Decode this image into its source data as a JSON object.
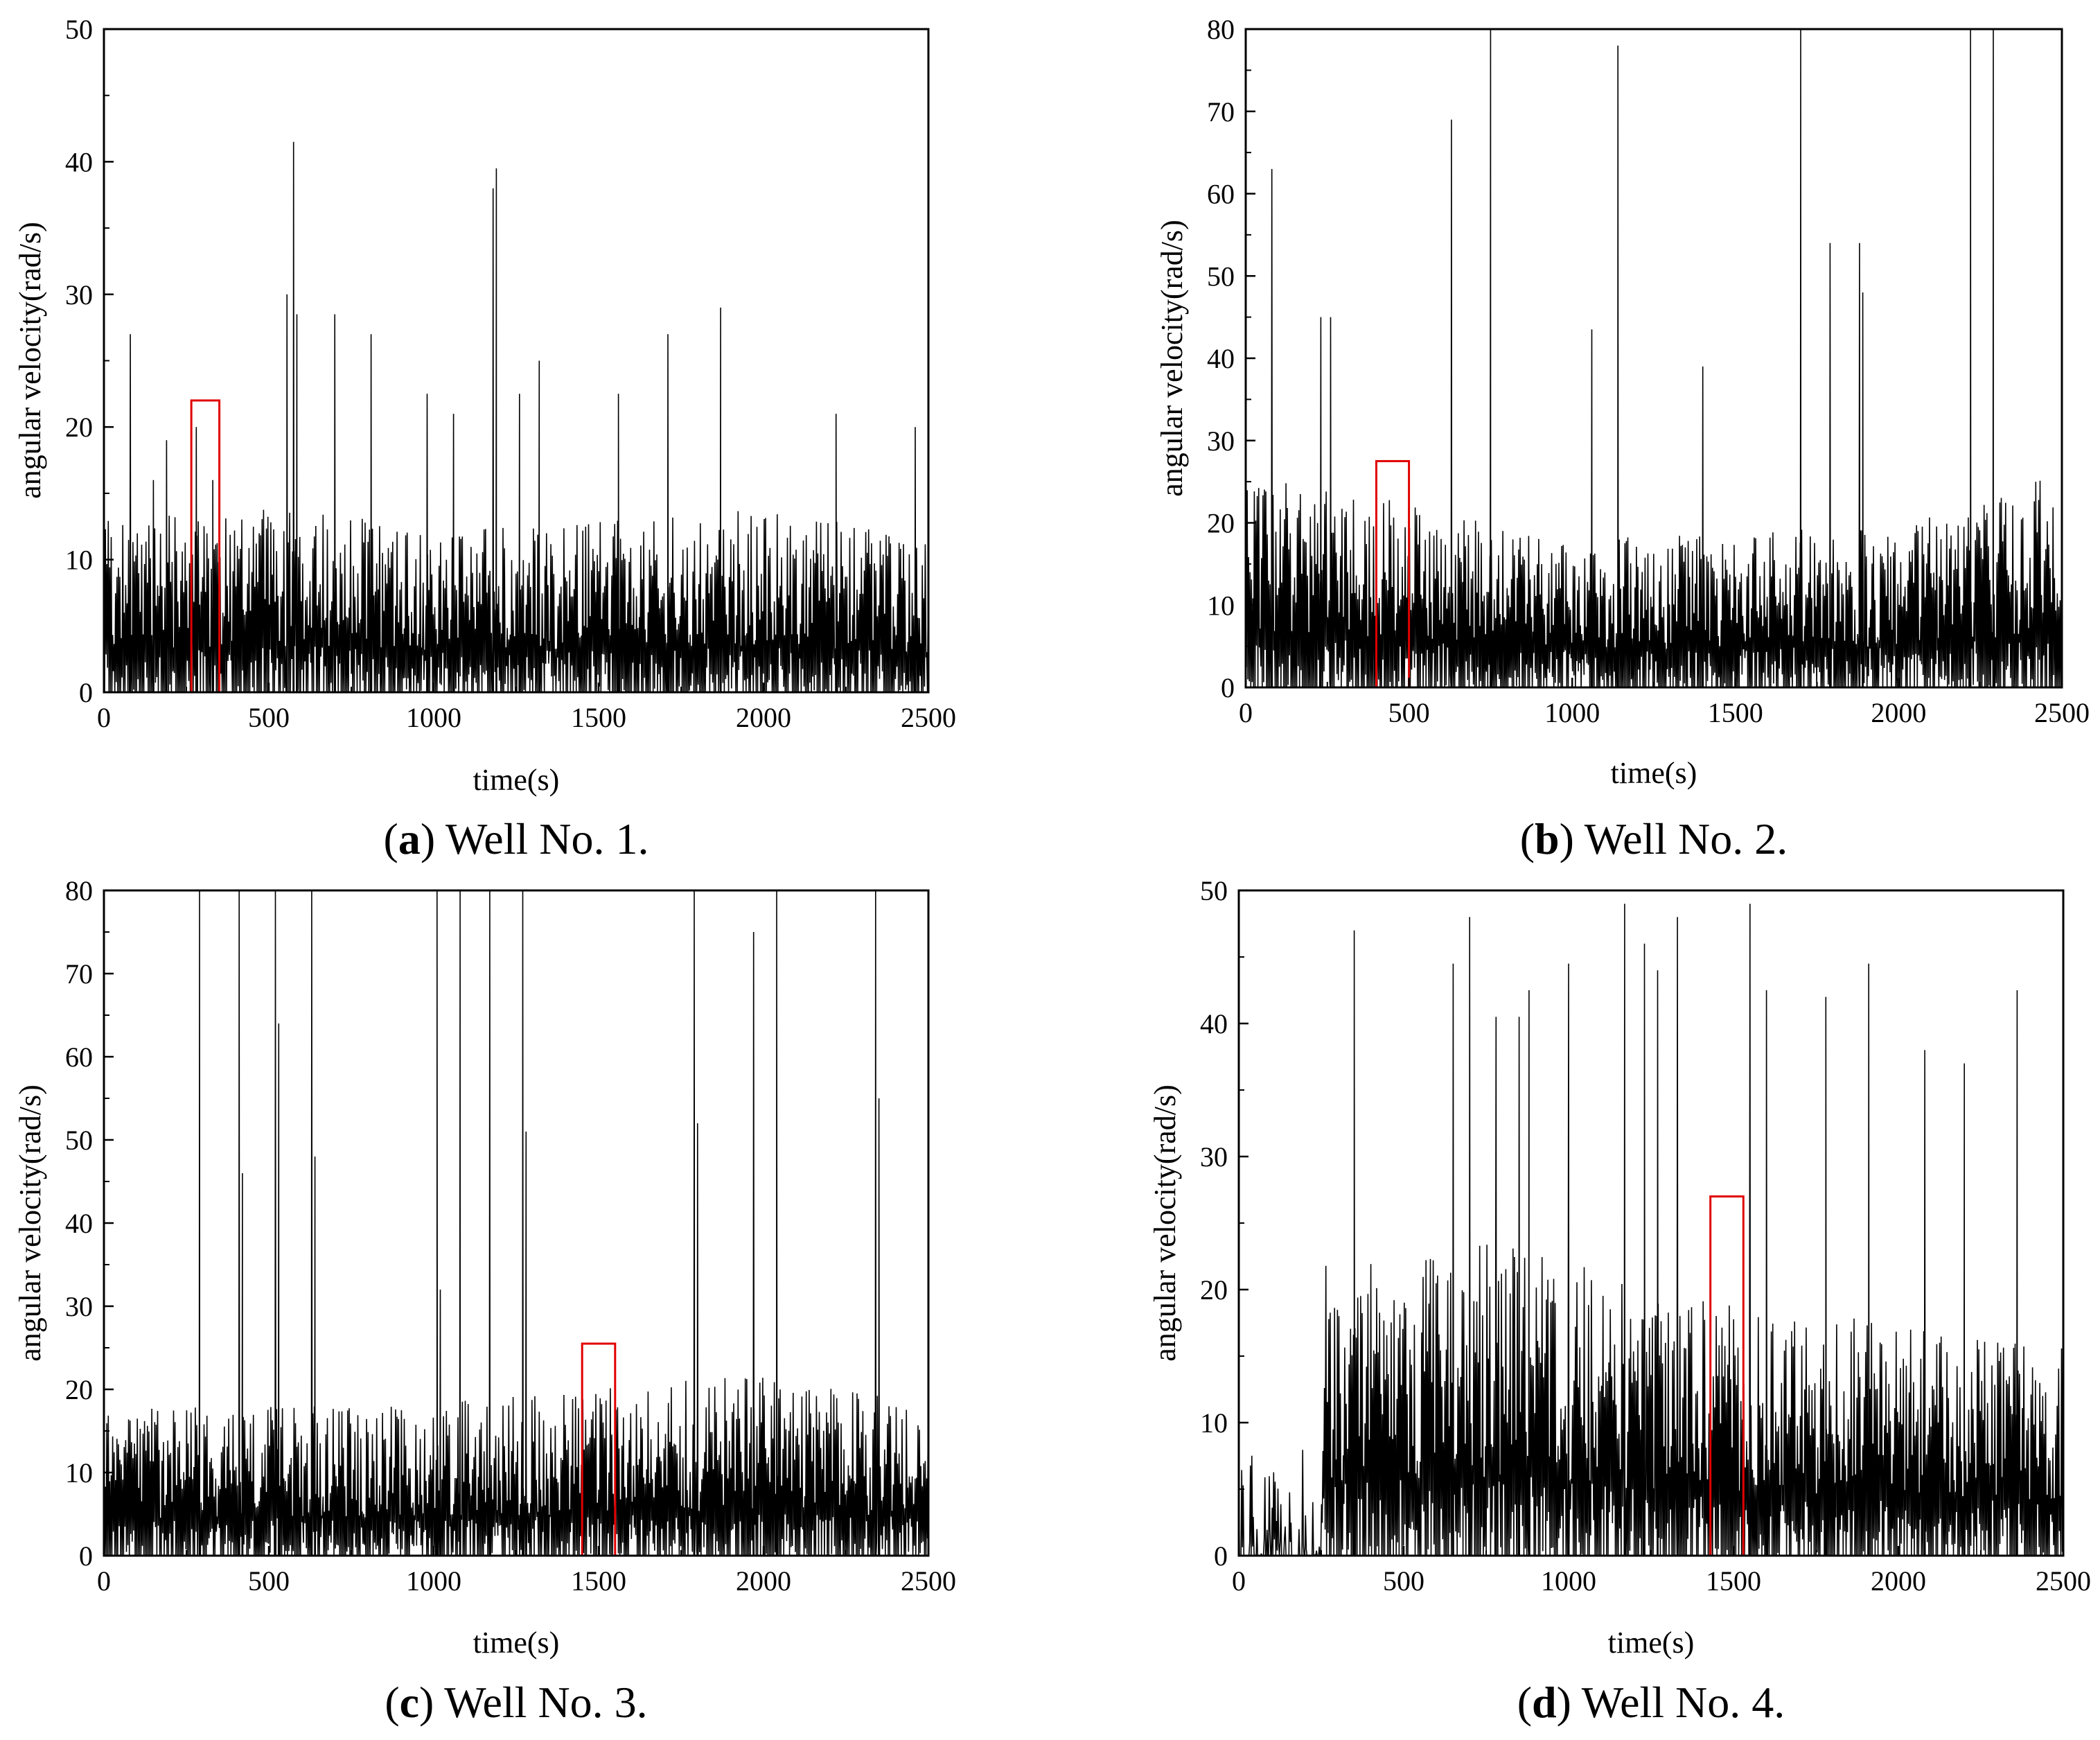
{
  "figure": {
    "panels": [
      {
        "letter": "a",
        "caption": " Well No. 1.",
        "xlabel": "time(s)",
        "ylabel": "angular velocity(rad/s)",
        "xticks": [
          "0",
          "500",
          "1000",
          "1500",
          "2000",
          "2500"
        ],
        "yticks": [
          "0",
          "10",
          "20",
          "30",
          "40",
          "50"
        ]
      },
      {
        "letter": "b",
        "caption": " Well No. 2.",
        "xlabel": "time(s)",
        "ylabel": "angular velocity(rad/s)",
        "xticks": [
          "0",
          "500",
          "1000",
          "1500",
          "2000",
          "2500"
        ],
        "yticks": [
          "0",
          "10",
          "20",
          "30",
          "40",
          "50",
          "60",
          "70",
          "80"
        ]
      },
      {
        "letter": "c",
        "caption": " Well No. 3.",
        "xlabel": "time(s)",
        "ylabel": "angular velocity(rad/s)",
        "xticks": [
          "0",
          "500",
          "1000",
          "1500",
          "2000",
          "2500"
        ],
        "yticks": [
          "0",
          "10",
          "20",
          "30",
          "40",
          "50",
          "60",
          "70",
          "80"
        ]
      },
      {
        "letter": "d",
        "caption": " Well No. 4.",
        "xlabel": "time(s)",
        "ylabel": "angular velocity(rad/s)",
        "xticks": [
          "0",
          "500",
          "1000",
          "1500",
          "2000",
          "2500"
        ],
        "yticks": [
          "0",
          "10",
          "20",
          "30",
          "40",
          "50"
        ]
      }
    ]
  },
  "chart_data": [
    {
      "type": "line",
      "title": "(a) Well No. 1.",
      "xlabel": "time(s)",
      "ylabel": "angular velocity(rad/s)",
      "xlim": [
        0,
        2500
      ],
      "ylim": [
        0,
        50
      ],
      "line_color": "#000000",
      "highlight_color": "#e00000",
      "base_max": 13,
      "base_profile": [
        [
          0,
          13
        ],
        [
          600,
          14
        ],
        [
          1000,
          12
        ],
        [
          2000,
          14
        ],
        [
          2500,
          12
        ]
      ],
      "sparse": [],
      "peaks": [
        [
          80,
          27
        ],
        [
          150,
          16
        ],
        [
          190,
          19
        ],
        [
          280,
          20
        ],
        [
          330,
          16
        ],
        [
          555,
          30
        ],
        [
          575,
          41.5
        ],
        [
          585,
          28.5
        ],
        [
          700,
          28.5
        ],
        [
          810,
          27
        ],
        [
          980,
          22.5
        ],
        [
          1060,
          21
        ],
        [
          1180,
          38
        ],
        [
          1190,
          39.5
        ],
        [
          1260,
          22.5
        ],
        [
          1320,
          25
        ],
        [
          1560,
          22.5
        ],
        [
          1710,
          27
        ],
        [
          1870,
          29
        ],
        [
          2220,
          21
        ],
        [
          2460,
          20
        ]
      ],
      "highlight": {
        "x0": 265,
        "x1": 350,
        "y": 22
      }
    },
    {
      "type": "line",
      "title": "(b) Well No. 2.",
      "xlabel": "time(s)",
      "ylabel": "angular velocity(rad/s)",
      "xlim": [
        0,
        2500
      ],
      "ylim": [
        0,
        80
      ],
      "line_color": "#000000",
      "highlight_color": "#e00000",
      "base_max": 24,
      "base_profile": [
        [
          0,
          26
        ],
        [
          300,
          24
        ],
        [
          1000,
          18
        ],
        [
          2000,
          20
        ],
        [
          2500,
          26
        ]
      ],
      "sparse": [],
      "peaks": [
        [
          80,
          63
        ],
        [
          230,
          45
        ],
        [
          260,
          45
        ],
        [
          630,
          69
        ],
        [
          750,
          80
        ],
        [
          1060,
          43.5
        ],
        [
          1140,
          78
        ],
        [
          1400,
          39
        ],
        [
          1700,
          80
        ],
        [
          1790,
          54
        ],
        [
          1880,
          54
        ],
        [
          1890,
          48
        ],
        [
          2220,
          80
        ],
        [
          2290,
          80
        ]
      ],
      "highlight": {
        "x0": 400,
        "x1": 500,
        "y": 27.5
      }
    },
    {
      "type": "line",
      "title": "(c) Well No. 3.",
      "xlabel": "time(s)",
      "ylabel": "angular velocity(rad/s)",
      "xlim": [
        0,
        2500
      ],
      "ylim": [
        0,
        80
      ],
      "line_color": "#000000",
      "highlight_color": "#e00000",
      "base_max": 18,
      "base_profile": [
        [
          0,
          18
        ],
        [
          900,
          18
        ],
        [
          1500,
          20
        ],
        [
          2000,
          22
        ],
        [
          2500,
          18
        ]
      ],
      "sparse": [],
      "peaks": [
        [
          290,
          80
        ],
        [
          410,
          80
        ],
        [
          420,
          46
        ],
        [
          520,
          80
        ],
        [
          530,
          64
        ],
        [
          630,
          80
        ],
        [
          640,
          48
        ],
        [
          1010,
          80
        ],
        [
          1020,
          32
        ],
        [
          1080,
          80
        ],
        [
          1170,
          80
        ],
        [
          1270,
          80
        ],
        [
          1280,
          51
        ],
        [
          1790,
          80
        ],
        [
          1800,
          52
        ],
        [
          1970,
          75
        ],
        [
          2040,
          80
        ],
        [
          2340,
          80
        ],
        [
          2350,
          55
        ]
      ],
      "highlight": {
        "x0": 1450,
        "x1": 1550,
        "y": 25.5
      }
    },
    {
      "type": "line",
      "title": "(d) Well No. 4.",
      "xlabel": "time(s)",
      "ylabel": "angular velocity(rad/s)",
      "xlim": [
        0,
        2500
      ],
      "ylim": [
        0,
        50
      ],
      "line_color": "#000000",
      "highlight_color": "#e00000",
      "base_max": 22,
      "base_profile": [
        [
          0,
          8
        ],
        [
          250,
          8
        ],
        [
          260,
          22
        ],
        [
          900,
          24
        ],
        [
          1200,
          20
        ],
        [
          2500,
          16
        ]
      ],
      "sparse": [
        [
          0,
          250
        ]
      ],
      "peaks": [
        [
          350,
          47
        ],
        [
          650,
          44.5
        ],
        [
          700,
          48
        ],
        [
          780,
          40.5
        ],
        [
          850,
          40.5
        ],
        [
          880,
          42.5
        ],
        [
          1000,
          44.5
        ],
        [
          1170,
          49
        ],
        [
          1230,
          46
        ],
        [
          1270,
          44
        ],
        [
          1330,
          48
        ],
        [
          1550,
          49
        ],
        [
          1600,
          42.5
        ],
        [
          1780,
          42
        ],
        [
          1910,
          44.5
        ],
        [
          2080,
          38
        ],
        [
          2200,
          37
        ],
        [
          2360,
          42.5
        ]
      ],
      "highlight": {
        "x0": 1430,
        "x1": 1530,
        "y": 27
      }
    }
  ]
}
